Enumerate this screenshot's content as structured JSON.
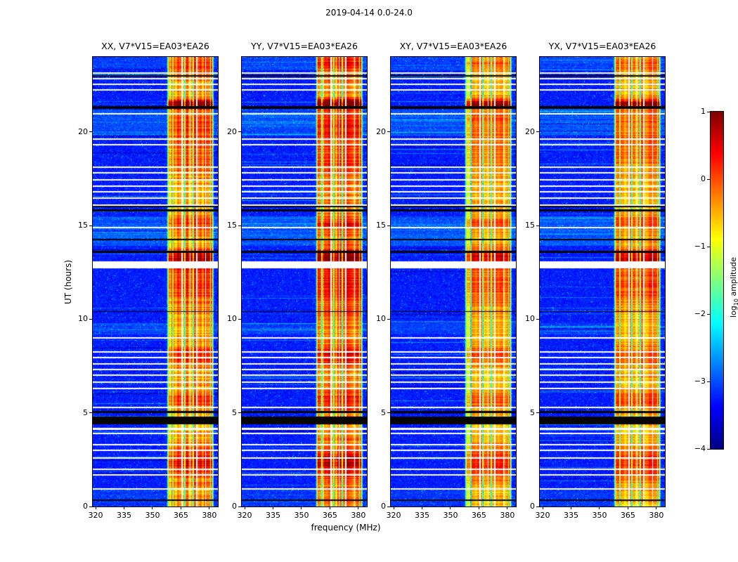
{
  "chart_data": {
    "type": "heatmap",
    "title": "2019-04-14 0.0-24.0",
    "xlabel": "frequency (MHz)",
    "ylabel": "UT (hours)",
    "panels": [
      {
        "title": "XX, V7*V15=EA03*EA26",
        "seed": 101,
        "band_strength": 1.0
      },
      {
        "title": "YY, V7*V15=EA03*EA26",
        "seed": 202,
        "band_strength": 1.05
      },
      {
        "title": "XY, V7*V15=EA03*EA26",
        "seed": 303,
        "band_strength": 0.85
      },
      {
        "title": "YX, V7*V15=EA03*EA26",
        "seed": 404,
        "band_strength": 0.9
      }
    ],
    "axes": {
      "freq_range": [
        318.5,
        384.5
      ],
      "time_range": [
        0,
        24
      ],
      "x_ticks": [
        320,
        335,
        350,
        365,
        380
      ],
      "y_ticks": [
        0,
        5,
        10,
        15,
        20
      ],
      "grid": false
    },
    "colorbar": {
      "label_pre": "log",
      "label_sub": "10",
      "label_post": " amplitude",
      "colormap": "jet",
      "range": [
        -4,
        1
      ],
      "ticks": [
        {
          "label": "1",
          "value": 1
        },
        {
          "label": "0",
          "value": 0
        },
        {
          "label": "−1",
          "value": -1
        },
        {
          "label": "−2",
          "value": -2
        },
        {
          "label": "−3",
          "value": -3
        },
        {
          "label": "−4",
          "value": -4
        }
      ]
    },
    "rfi_band": {
      "start": 357.5,
      "end": 382.5,
      "base": -1.7
    },
    "bursts": [
      {
        "ut": 2.3,
        "w": 0.9,
        "amp": 0.7
      },
      {
        "ut": 5.7,
        "w": 0.5,
        "amp": 0.5
      },
      {
        "ut": 8.05,
        "w": 0.5,
        "amp": 0.6
      },
      {
        "ut": 11.9,
        "w": 1.3,
        "amp": 0.5
      },
      {
        "ut": 13.3,
        "w": 0.45,
        "amp": 0.95
      },
      {
        "ut": 15.1,
        "w": 0.4,
        "amp": 0.5
      },
      {
        "ut": 18.7,
        "w": 1.3,
        "amp": 0.3
      },
      {
        "ut": 20.6,
        "w": 0.9,
        "amp": 0.4
      },
      {
        "ut": 21.5,
        "w": 0.22,
        "amp": 1.25
      },
      {
        "ut": 23.6,
        "w": 0.5,
        "amp": 0.45
      }
    ],
    "white_rows": [
      [
        0.95,
        0.04
      ],
      [
        1.7,
        0.04
      ],
      [
        2.0,
        0.04
      ],
      [
        2.6,
        0.04
      ],
      [
        3.0,
        0.04
      ],
      [
        3.3,
        0.04
      ],
      [
        3.9,
        0.05
      ],
      [
        4.15,
        0.05
      ],
      [
        5.3,
        0.04
      ],
      [
        6.3,
        0.04
      ],
      [
        6.65,
        0.04
      ],
      [
        7.0,
        0.04
      ],
      [
        7.3,
        0.04
      ],
      [
        7.6,
        0.04
      ],
      [
        7.95,
        0.04
      ],
      [
        8.25,
        0.04
      ],
      [
        9.0,
        0.04
      ],
      [
        12.9,
        0.18
      ],
      [
        14.9,
        0.04
      ],
      [
        16.1,
        0.04
      ],
      [
        16.45,
        0.04
      ],
      [
        16.8,
        0.04
      ],
      [
        17.1,
        0.04
      ],
      [
        17.45,
        0.04
      ],
      [
        17.8,
        0.04
      ],
      [
        18.1,
        0.04
      ],
      [
        19.3,
        0.04
      ],
      [
        19.6,
        0.04
      ],
      [
        20.95,
        0.04
      ],
      [
        22.25,
        0.04
      ],
      [
        22.55,
        0.04
      ],
      [
        22.85,
        0.04
      ],
      [
        23.15,
        0.04
      ]
    ],
    "black_rows": [
      [
        0.35,
        0.04
      ],
      [
        4.6,
        0.2
      ],
      [
        5.05,
        0.05
      ],
      [
        10.4,
        0.03
      ],
      [
        13.6,
        0.05
      ],
      [
        14.25,
        0.05
      ],
      [
        15.8,
        0.06
      ],
      [
        16.0,
        0.04
      ],
      [
        21.3,
        0.07
      ],
      [
        23.0,
        0.04
      ]
    ],
    "noisy_regions": [
      {
        "ut0": 13.9,
        "ut1": 15.5,
        "amp": 0.3
      },
      {
        "ut0": 19.8,
        "ut1": 21.2,
        "amp": 0.28
      },
      {
        "ut0": 9.2,
        "ut1": 9.8,
        "amp": 0.18
      },
      {
        "ut0": 23.3,
        "ut1": 24.0,
        "amp": 0.2
      },
      {
        "ut0": 0.0,
        "ut1": 0.9,
        "amp": 0.15
      }
    ],
    "flagged_channels": [
      365.6,
      369.8,
      373.4,
      378.0
    ],
    "dark_channels": [
      360.8,
      367.2,
      371.6,
      380.6
    ]
  }
}
